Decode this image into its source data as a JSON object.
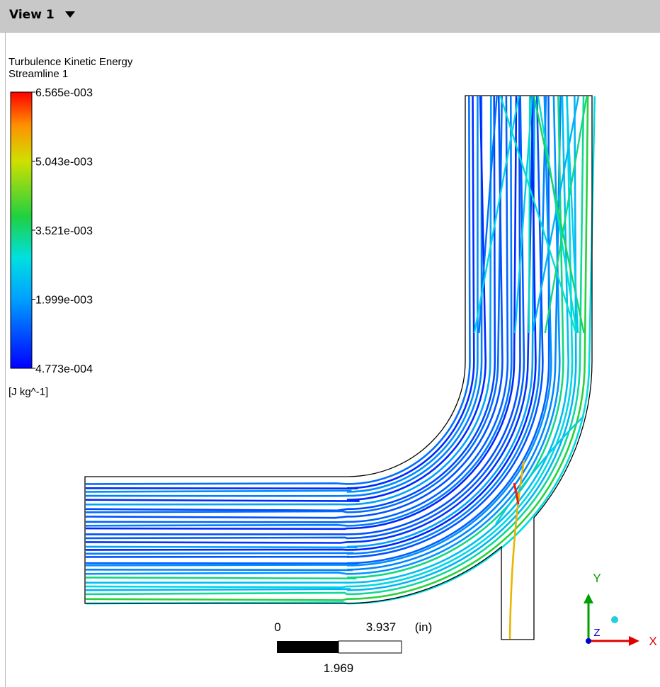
{
  "header": {
    "title": "View 1"
  },
  "legend": {
    "title": "Turbulence Kinetic Energy",
    "subtitle": "Streamline 1",
    "labels": [
      "6.565e-003",
      "5.043e-003",
      "3.521e-003",
      "1.999e-003",
      "4.773e-004"
    ],
    "unit": "[J kg^-1]"
  },
  "scale_bar": {
    "start": "0",
    "end": "3.937",
    "unit": "(in)",
    "middle": "1.969"
  },
  "axes": {
    "x": "X",
    "y": "Y",
    "z": "Z"
  }
}
